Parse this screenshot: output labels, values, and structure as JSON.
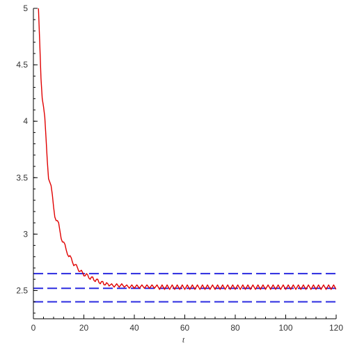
{
  "chart_data": {
    "type": "line",
    "xlabel": "t",
    "ylabel": "",
    "xlim": [
      0,
      120
    ],
    "ylim": [
      2.25,
      5
    ],
    "x_ticks": [
      {
        "value": 0,
        "label": "0"
      },
      {
        "value": 20,
        "label": "20"
      },
      {
        "value": 40,
        "label": "40"
      },
      {
        "value": 60,
        "label": "60"
      },
      {
        "value": 80,
        "label": "80"
      },
      {
        "value": 100,
        "label": "100"
      },
      {
        "value": 120,
        "label": "120"
      }
    ],
    "y_ticks": [
      {
        "value": 2.5,
        "label": "2.5"
      },
      {
        "value": 3,
        "label": "3"
      },
      {
        "value": 3.5,
        "label": "3.5"
      },
      {
        "value": 4,
        "label": "4"
      },
      {
        "value": 4.5,
        "label": "4.5"
      },
      {
        "value": 5,
        "label": "5"
      }
    ],
    "grid": false,
    "series": [
      {
        "color": "#e00000",
        "style": "solid",
        "x": [
          2.0,
          2.5,
          3,
          3.5,
          4,
          4.5,
          5,
          5.5,
          6,
          6.5,
          7,
          7.5,
          8,
          8.5,
          9,
          9.5,
          10,
          10.5,
          11,
          11.5,
          12,
          12.5,
          13,
          13.5,
          14,
          14.5,
          15,
          15.5,
          16,
          16.5,
          17,
          17.5,
          18,
          18.5,
          19,
          19.5,
          20,
          20.5,
          21,
          21.5,
          22,
          22.5,
          23,
          23.5,
          24,
          24.5,
          25,
          25.5,
          26,
          26.5,
          27,
          27.5,
          28,
          28.5,
          29,
          29.5,
          30,
          31,
          32,
          33,
          34,
          35,
          36,
          37,
          38,
          39,
          40,
          41,
          42,
          43,
          44,
          45,
          46,
          47,
          48,
          49,
          50,
          51,
          52,
          53,
          54,
          55,
          56,
          57,
          58,
          59,
          60,
          61,
          62,
          63,
          64,
          65,
          66,
          67,
          68,
          69,
          70,
          71,
          72,
          73,
          74,
          75,
          76,
          77,
          78,
          79,
          80,
          81,
          82,
          83,
          84,
          85,
          86,
          87,
          88,
          89,
          90,
          91,
          92,
          93,
          94,
          95,
          96,
          97,
          98,
          99,
          100,
          101,
          102,
          103,
          104,
          105,
          106,
          107,
          108,
          109,
          110,
          111,
          112,
          113,
          114,
          115,
          116,
          117,
          118,
          119,
          120
        ],
        "y": [
          5.0,
          4.7,
          4.38,
          4.2,
          4.13,
          4.04,
          3.85,
          3.65,
          3.49,
          3.46,
          3.43,
          3.35,
          3.24,
          3.15,
          3.12,
          3.12,
          3.1,
          3.03,
          2.96,
          2.93,
          2.93,
          2.91,
          2.86,
          2.82,
          2.8,
          2.81,
          2.79,
          2.75,
          2.72,
          2.73,
          2.73,
          2.7,
          2.67,
          2.67,
          2.68,
          2.66,
          2.63,
          2.63,
          2.65,
          2.64,
          2.61,
          2.6,
          2.62,
          2.62,
          2.59,
          2.58,
          2.6,
          2.6,
          2.57,
          2.56,
          2.58,
          2.58,
          2.55,
          2.55,
          2.57,
          2.56,
          2.54,
          2.56,
          2.53,
          2.56,
          2.53,
          2.56,
          2.53,
          2.55,
          2.52,
          2.55,
          2.52,
          2.55,
          2.52,
          2.55,
          2.52,
          2.55,
          2.52,
          2.55,
          2.52,
          2.55,
          2.51,
          2.55,
          2.51,
          2.55,
          2.51,
          2.55,
          2.51,
          2.55,
          2.51,
          2.55,
          2.51,
          2.55,
          2.51,
          2.55,
          2.51,
          2.55,
          2.51,
          2.55,
          2.51,
          2.55,
          2.51,
          2.55,
          2.51,
          2.55,
          2.51,
          2.55,
          2.51,
          2.55,
          2.51,
          2.55,
          2.51,
          2.55,
          2.51,
          2.55,
          2.51,
          2.55,
          2.51,
          2.55,
          2.51,
          2.55,
          2.51,
          2.55,
          2.51,
          2.55,
          2.51,
          2.55,
          2.51,
          2.55,
          2.51,
          2.55,
          2.51,
          2.55,
          2.51,
          2.55,
          2.51,
          2.55,
          2.51,
          2.55,
          2.51,
          2.55,
          2.51,
          2.55,
          2.51,
          2.55,
          2.51,
          2.55,
          2.51,
          2.55,
          2.51,
          2.55,
          2.51
        ]
      }
    ],
    "hlines": [
      {
        "y": 2.65,
        "color": "#2a2ae0",
        "style": "dashed"
      },
      {
        "y": 2.52,
        "color": "#2a2ae0",
        "style": "dashed"
      },
      {
        "y": 2.4,
        "color": "#2a2ae0",
        "style": "dashed"
      }
    ]
  }
}
